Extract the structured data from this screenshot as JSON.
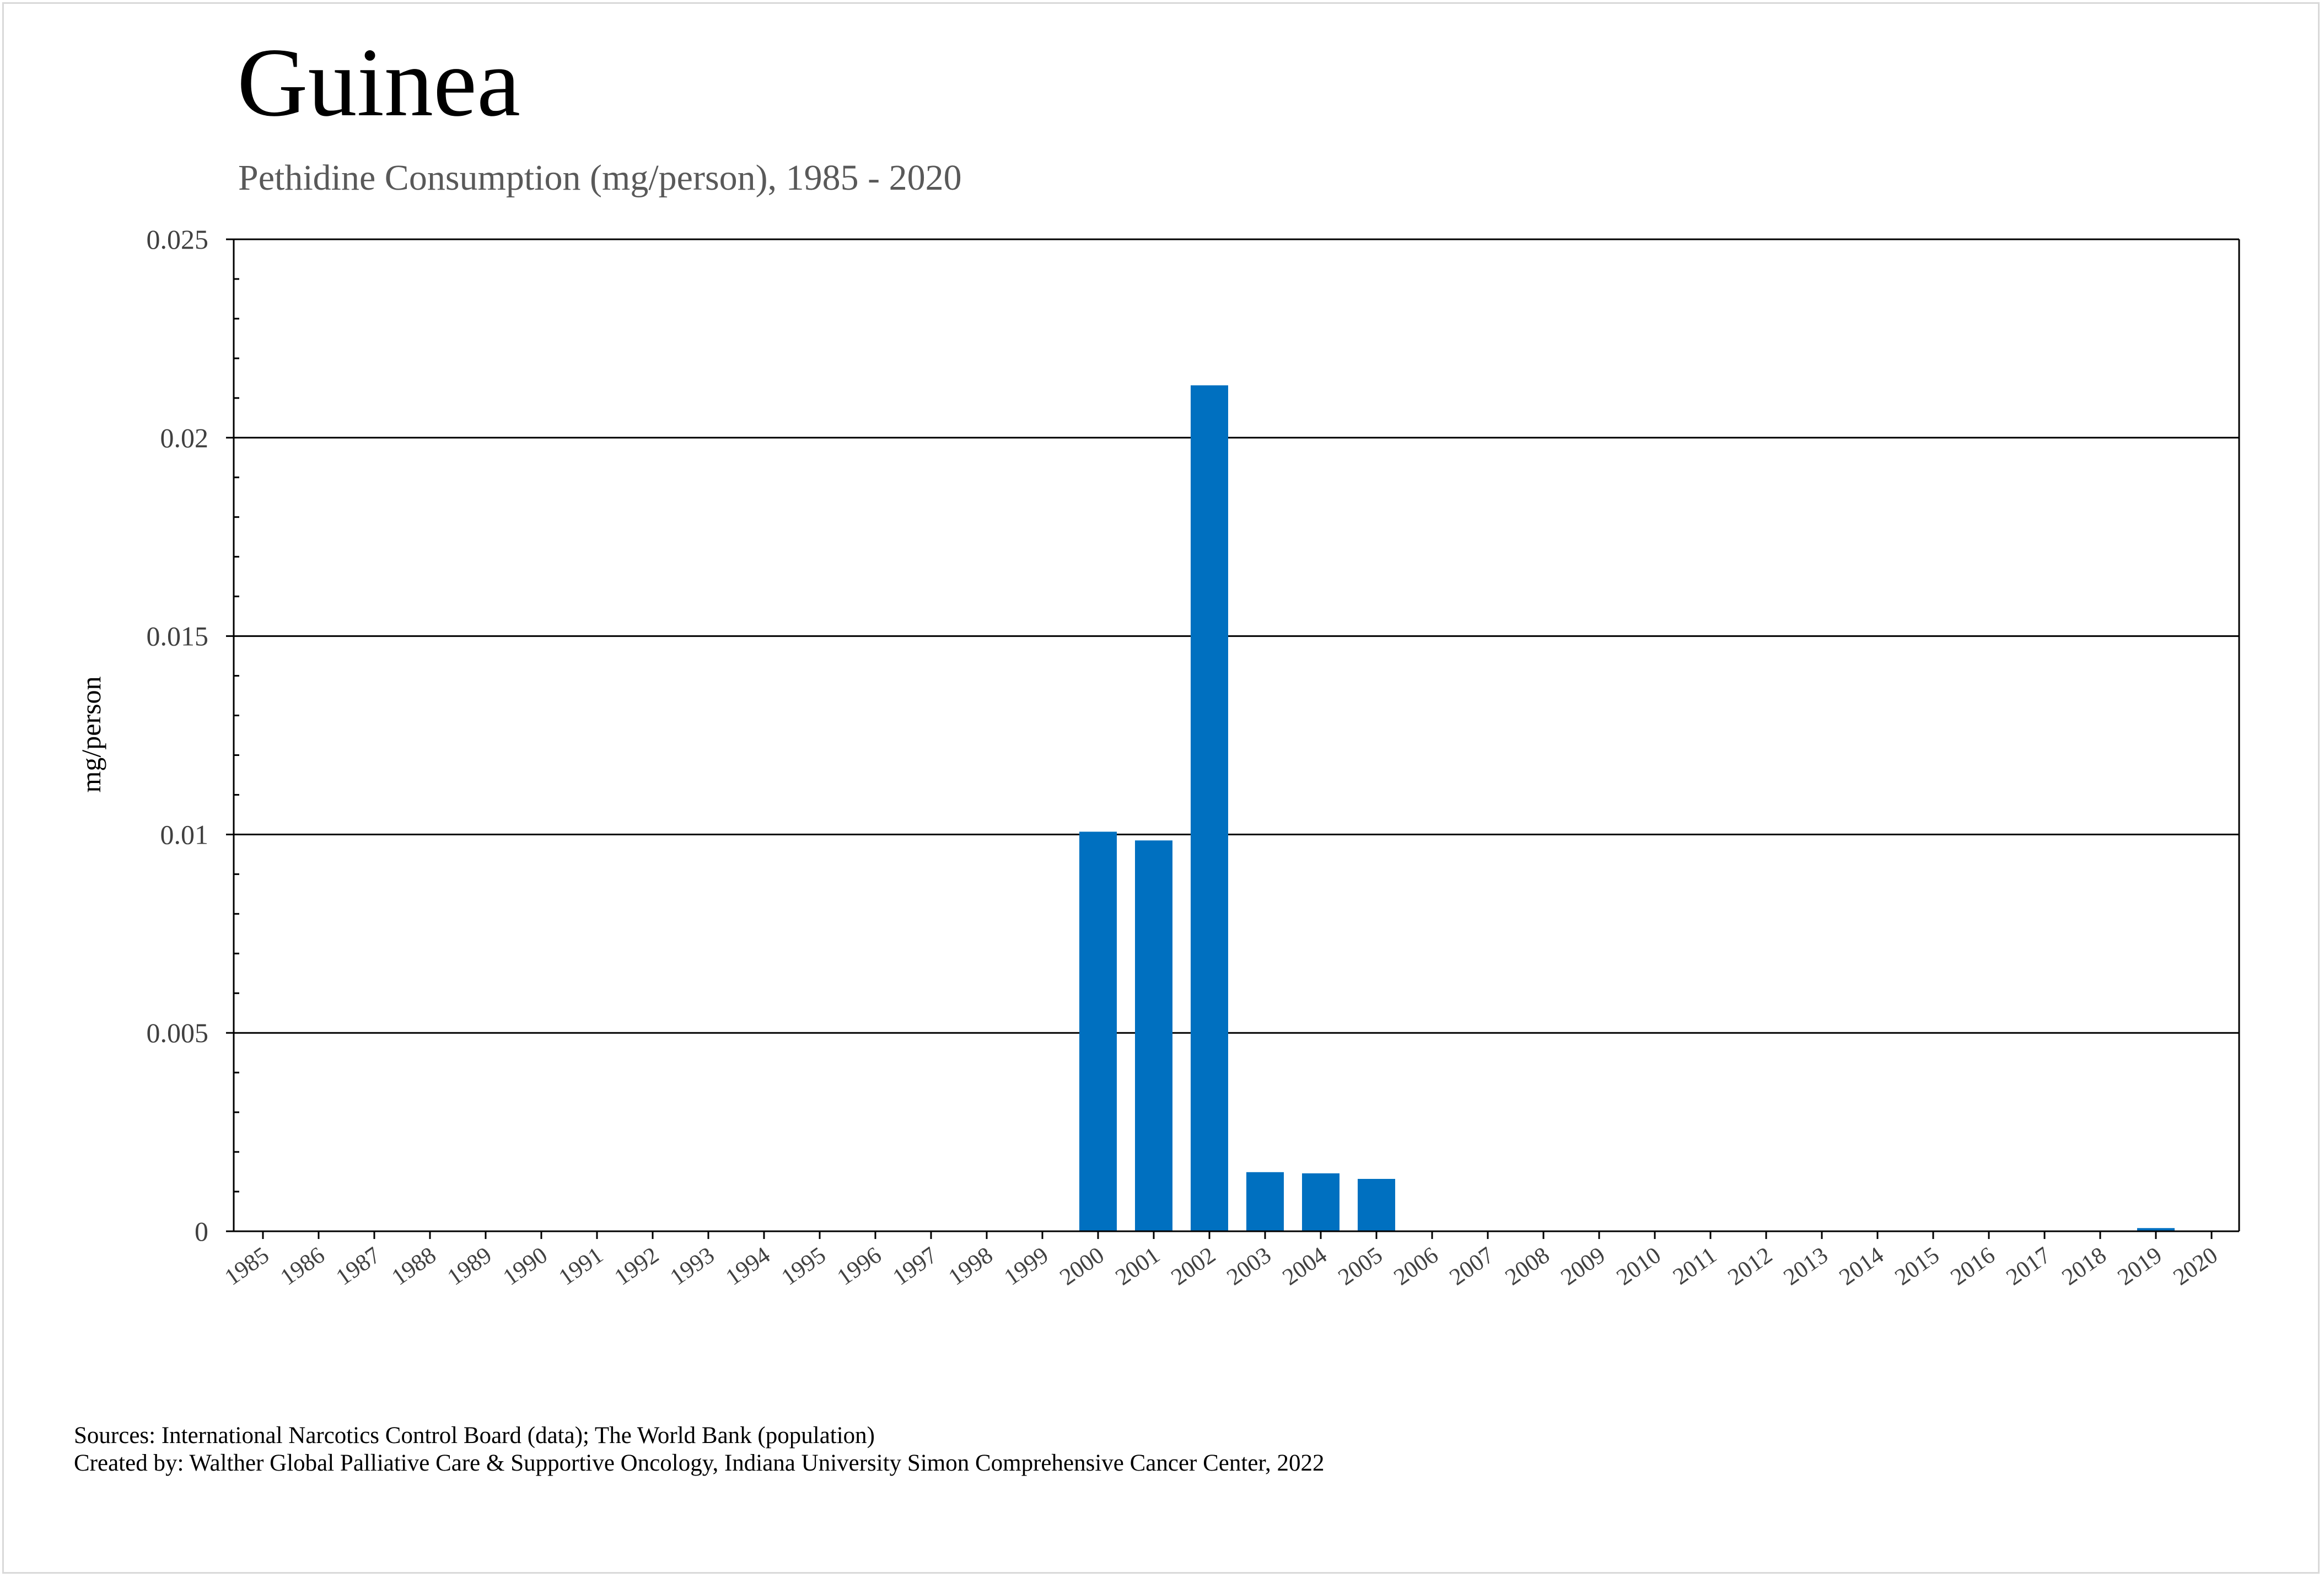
{
  "header": {
    "title": "Guinea",
    "subtitle": "Pethidine Consumption (mg/person), 1985 - 2020"
  },
  "footer": {
    "sources": "Sources: International Narcotics Control Board (data); The World Bank (population)",
    "credit": "Created by: Walther Global Palliative Care & Supportive Oncology, Indiana University Simon Comprehensive Cancer Center, 2022"
  },
  "chart_data": {
    "type": "bar",
    "title": "Guinea",
    "subtitle": "Pethidine Consumption (mg/person), 1985 - 2020",
    "xlabel": "",
    "ylabel": "mg/person",
    "ylim": [
      0,
      0.025
    ],
    "yticks": [
      "0",
      "0.005",
      "0.01",
      "0.015",
      "0.02",
      "0.025"
    ],
    "grid": true,
    "legend": "none",
    "bar_color": "#0070C0",
    "categories": [
      "1985",
      "1986",
      "1987",
      "1988",
      "1989",
      "1990",
      "1991",
      "1992",
      "1993",
      "1994",
      "1995",
      "1996",
      "1997",
      "1998",
      "1999",
      "2000",
      "2001",
      "2002",
      "2003",
      "2004",
      "2005",
      "2006",
      "2007",
      "2008",
      "2009",
      "2010",
      "2011",
      "2012",
      "2013",
      "2014",
      "2015",
      "2016",
      "2017",
      "2018",
      "2019",
      "2020"
    ],
    "values": [
      0,
      0,
      0,
      0,
      0,
      0,
      0,
      0,
      0,
      0,
      0,
      0,
      0,
      0,
      0,
      0.01007,
      0.00985,
      0.02132,
      0.00149,
      0.00146,
      0.00132,
      0,
      0,
      0,
      0,
      0,
      0,
      0,
      0,
      0,
      0,
      0,
      0,
      0,
      8e-05,
      0
    ]
  }
}
